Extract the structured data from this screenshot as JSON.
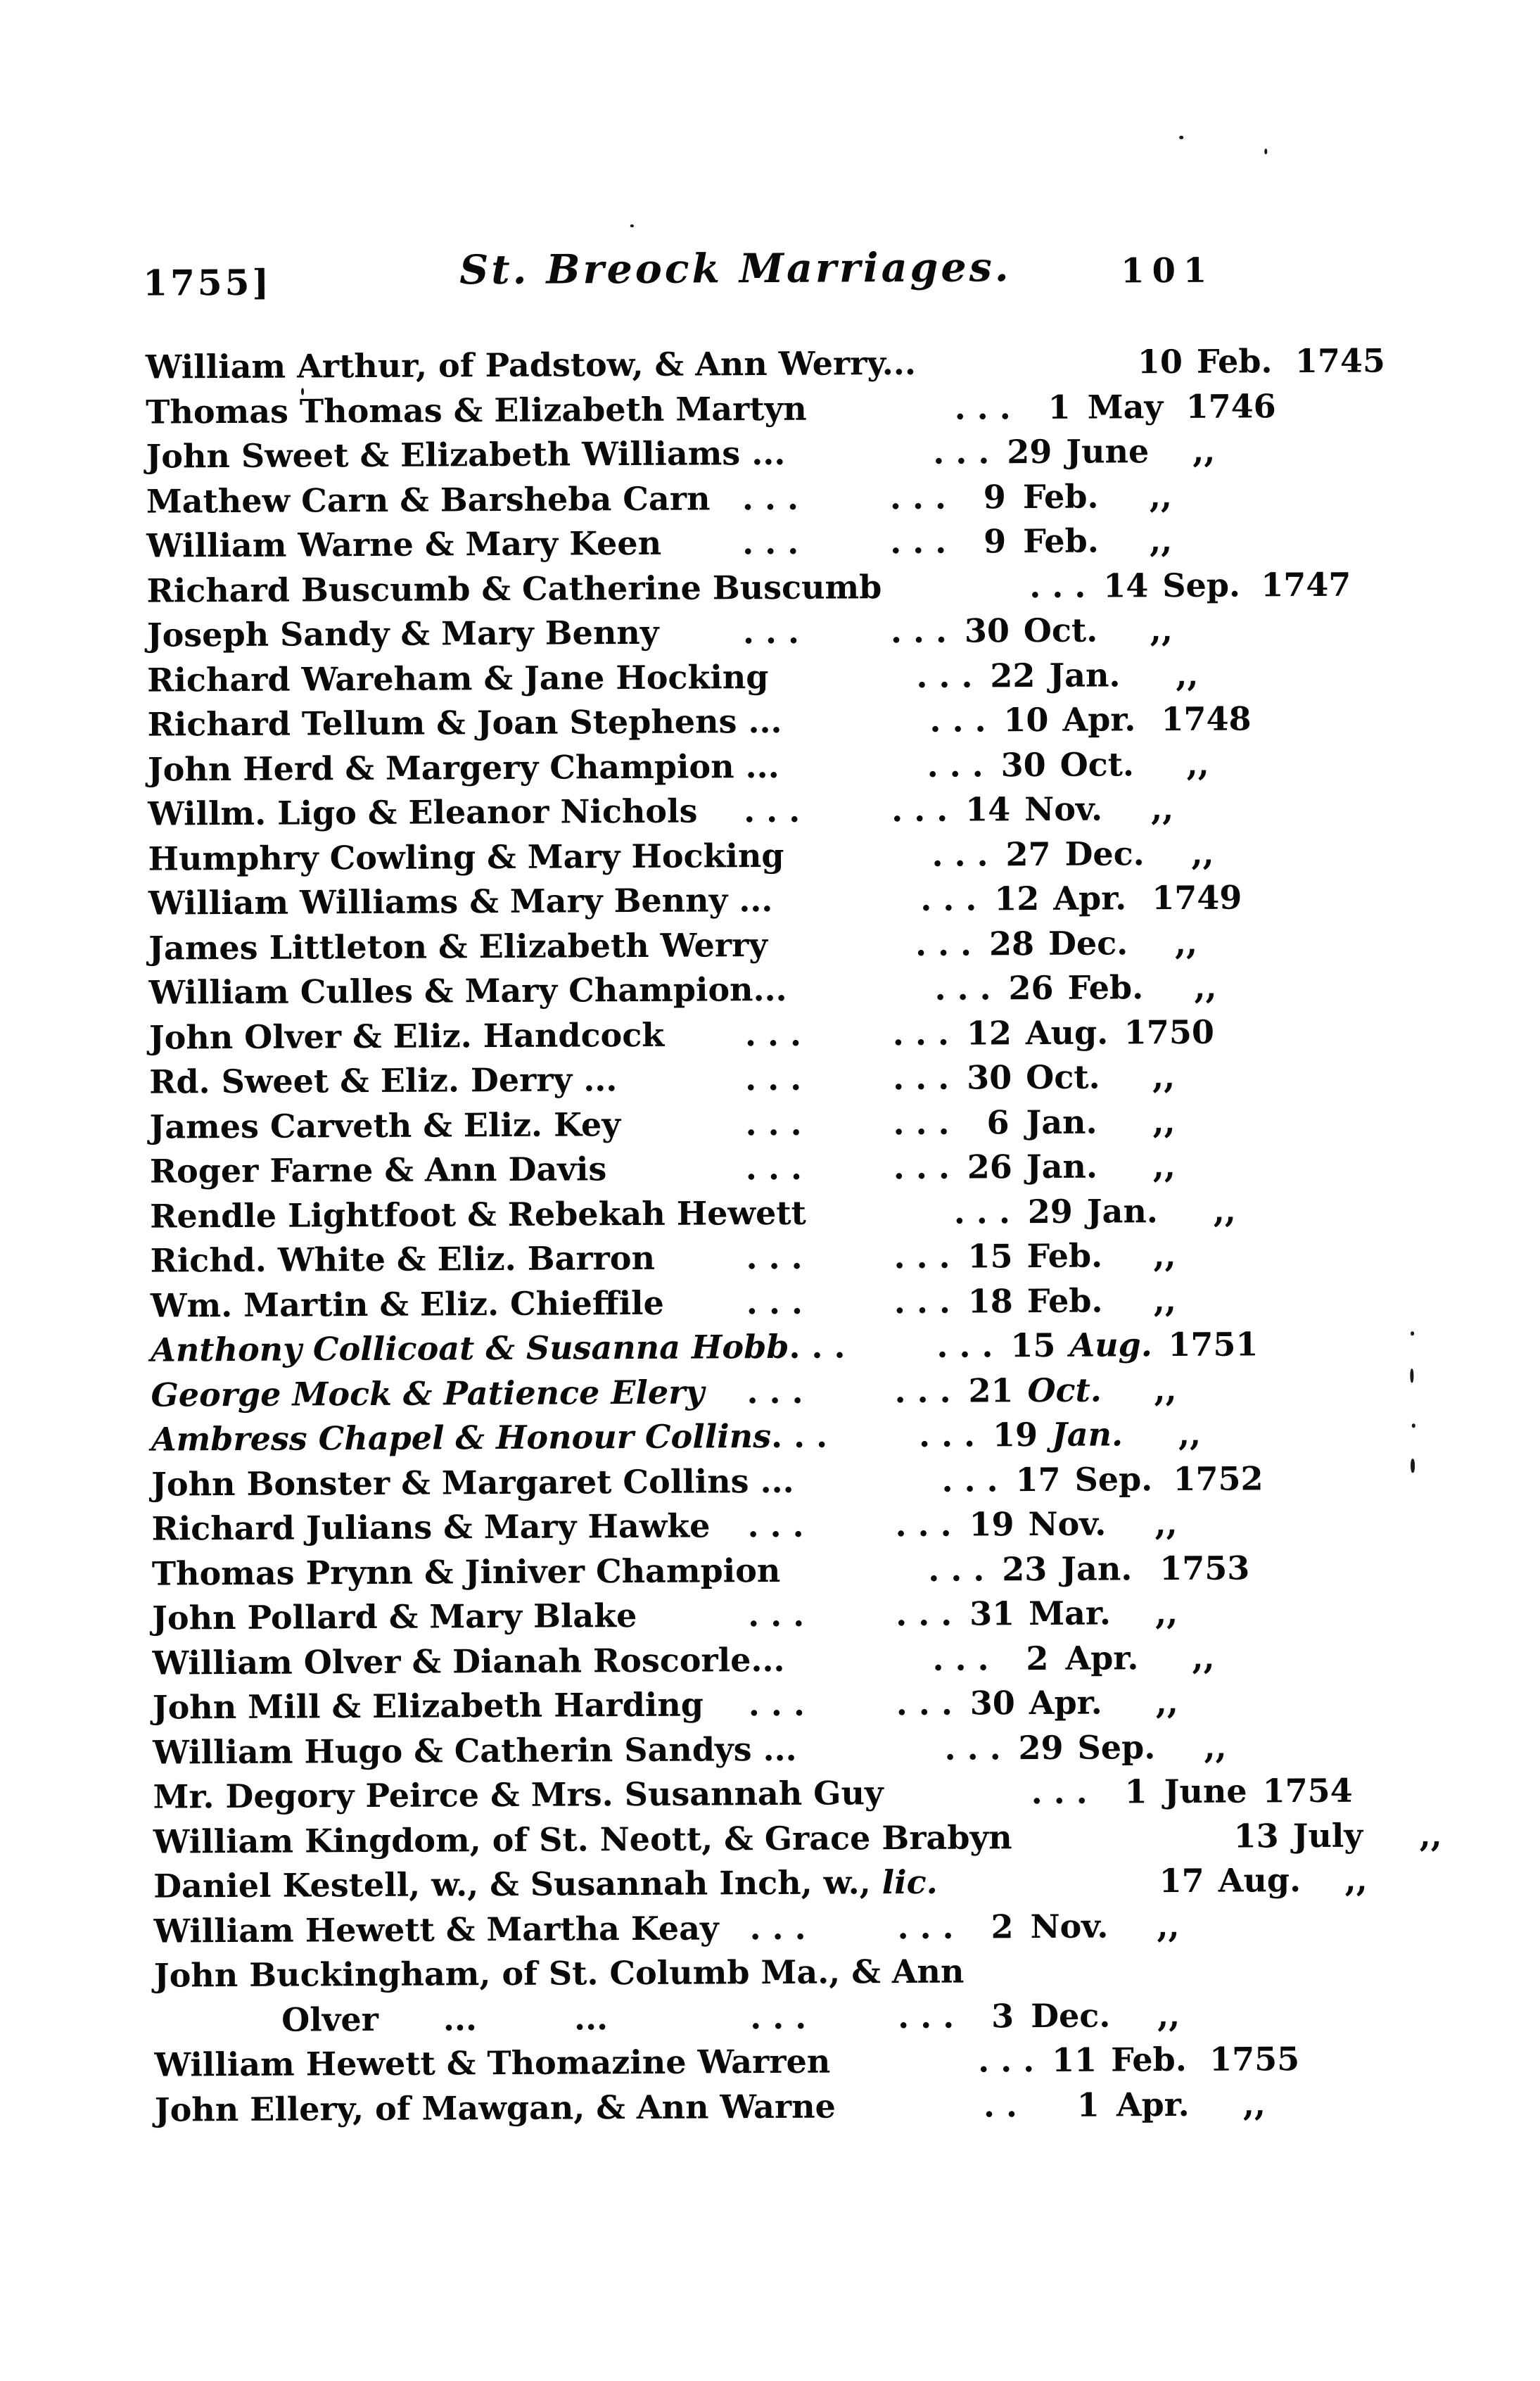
{
  "header": {
    "year_label": "1755]",
    "title": "St. Breock Marriages.",
    "page_number": "101"
  },
  "records": [
    {
      "name": "William Arthur, of Padstow, & Ann Werry...",
      "dots_a": "",
      "dots_b": "",
      "day": "10",
      "month": "Feb.",
      "year": "1745"
    },
    {
      "name": "Thomas Thomas & Elizabeth Martyn",
      "dots_a": "",
      "dots_b": "...",
      "day": "1",
      "month": "May",
      "year": "1746"
    },
    {
      "name": "John Sweet & Elizabeth Williams ...",
      "dots_a": "",
      "dots_b": "...",
      "day": "29",
      "month": "June",
      "year": ",,"
    },
    {
      "name": "Mathew Carn & Barsheba Carn",
      "dots_a": "...",
      "dots_b": "...",
      "day": "9",
      "month": "Feb.",
      "year": ",,"
    },
    {
      "name": "William Warne & Mary Keen",
      "dots_a": "...",
      "dots_b": "...",
      "day": "9",
      "month": "Feb.",
      "year": ",,"
    },
    {
      "name": "Richard Buscumb & Catherine Buscumb",
      "dots_a": "",
      "dots_b": "...",
      "day": "14",
      "month": "Sep.",
      "year": "1747"
    },
    {
      "name": "Joseph Sandy & Mary Benny",
      "dots_a": "...",
      "dots_b": "...",
      "day": "30",
      "month": "Oct.",
      "year": ",,"
    },
    {
      "name": "Richard Wareham & Jane Hocking",
      "dots_a": "",
      "dots_b": "...",
      "day": "22",
      "month": "Jan.",
      "year": ",,"
    },
    {
      "name": "Richard Tellum & Joan Stephens ...",
      "dots_a": "",
      "dots_b": "...",
      "day": "10",
      "month": "Apr.",
      "year": "1748"
    },
    {
      "name": "John Herd & Margery Champion ...",
      "dots_a": "",
      "dots_b": "...",
      "day": "30",
      "month": "Oct.",
      "year": ",,"
    },
    {
      "name": "Willm. Ligo & Eleanor Nichols",
      "dots_a": "...",
      "dots_b": "...",
      "day": "14",
      "month": "Nov.",
      "year": ",,"
    },
    {
      "name": "Humphry Cowling & Mary Hocking",
      "dots_a": "",
      "dots_b": "...",
      "day": "27",
      "month": "Dec.",
      "year": ",,"
    },
    {
      "name": "William Williams & Mary Benny ...",
      "dots_a": "",
      "dots_b": "...",
      "day": "12",
      "month": "Apr.",
      "year": "1749"
    },
    {
      "name": "James Littleton & Elizabeth Werry",
      "dots_a": "",
      "dots_b": "...",
      "day": "28",
      "month": "Dec.",
      "year": ",,"
    },
    {
      "name": "William Culles & Mary Champion...",
      "dots_a": "",
      "dots_b": "...",
      "day": "26",
      "month": "Feb.",
      "year": ",,"
    },
    {
      "name": "John Olver & Eliz. Handcock",
      "dots_a": "...",
      "dots_b": "...",
      "day": "12",
      "month": "Aug.",
      "year": "1750"
    },
    {
      "name": "Rd. Sweet & Eliz. Derry ...",
      "dots_a": "...",
      "dots_b": "...",
      "day": "30",
      "month": "Oct.",
      "year": ",,"
    },
    {
      "name": "James Carveth & Eliz. Key",
      "dots_a": "...",
      "dots_b": "...",
      "day": "6",
      "month": "Jan.",
      "year": ",,"
    },
    {
      "name": "Roger Farne & Ann Davis",
      "dots_a": "...",
      "dots_b": "...",
      "day": "26",
      "month": "Jan.",
      "year": ",,"
    },
    {
      "name": "Rendle Lightfoot & Rebekah Hewett",
      "dots_a": "",
      "dots_b": "...",
      "day": "29",
      "month": "Jan.",
      "year": ",,"
    },
    {
      "name": "Richd. White & Eliz. Barron",
      "dots_a": "...",
      "dots_b": "...",
      "day": "15",
      "month": "Feb.",
      "year": ",,"
    },
    {
      "name": "Wm. Martin & Eliz. Chieffile",
      "dots_a": "...",
      "dots_b": "...",
      "day": "18",
      "month": "Feb.",
      "year": ",,"
    },
    {
      "name": "Anthony Collicoat & Susanna Hobb",
      "italic": true,
      "dots_a": "...",
      "dots_b": "...",
      "day": "15",
      "month": "Aug.",
      "month_italic": true,
      "year": "1751"
    },
    {
      "name": "George Mock & Patience Elery",
      "italic": true,
      "dots_a": "...",
      "dots_b": "...",
      "day": "21",
      "month": "Oct.",
      "month_italic": true,
      "year": ",,"
    },
    {
      "name": "Ambress Chapel & Honour Collins",
      "italic": true,
      "dots_a": "...",
      "dots_b": "...",
      "day": "19",
      "month": "Jan.",
      "month_italic": true,
      "year": ",,"
    },
    {
      "name": "John Bonster & Margaret Collins ...",
      "dots_a": "",
      "dots_b": "...",
      "day": "17",
      "month": "Sep.",
      "year": "1752"
    },
    {
      "name": "Richard Julians & Mary Hawke",
      "dots_a": "...",
      "dots_b": "...",
      "day": "19",
      "month": "Nov.",
      "year": ",,"
    },
    {
      "name": "Thomas Prynn & Jiniver Champion",
      "dots_a": "",
      "dots_b": "...",
      "day": "23",
      "month": "Jan.",
      "year": "1753"
    },
    {
      "name": "John Pollard & Mary Blake",
      "dots_a": "...",
      "dots_b": "...",
      "day": "31",
      "month": "Mar.",
      "year": ",,"
    },
    {
      "name": "William Olver & Dianah Roscorle...",
      "dots_a": "",
      "dots_b": "...",
      "day": "2",
      "month": "Apr.",
      "year": ",,"
    },
    {
      "name": "John Mill & Elizabeth Harding",
      "dots_a": "...",
      "dots_b": "...",
      "day": "30",
      "month": "Apr.",
      "year": ",,"
    },
    {
      "name": "William Hugo & Catherin Sandys ...",
      "dots_a": "",
      "dots_b": "...",
      "day": "29",
      "month": "Sep.",
      "year": ",,"
    },
    {
      "name": "Mr. Degory Peirce & Mrs. Susannah Guy",
      "dots_a": "",
      "dots_b": "...",
      "day": "1",
      "month": "June",
      "year": "1754"
    },
    {
      "name": "William Kingdom, of St. Neott, & Grace Brabyn",
      "dots_a": "",
      "dots_b": "",
      "day": "13",
      "month": "July",
      "year": ",,"
    },
    {
      "name": "Daniel Kestell, w., & Susannah Inch, w., ",
      "suffix_italic": "lic.",
      "dots_a": "",
      "dots_b": "",
      "day": "17",
      "month": "Aug.",
      "year": ",,"
    },
    {
      "name": "William Hewett & Martha Keay",
      "dots_a": "...",
      "dots_b": "...",
      "day": "2",
      "month": "Nov.",
      "year": ",,"
    },
    {
      "name": "John Buckingham, of St. Columb Ma., & Ann",
      "dots_a": "",
      "dots_b": "",
      "day": "",
      "month": "",
      "year": ""
    },
    {
      "name": "Olver  ...   ...",
      "indent": true,
      "dots_a": "...",
      "dots_b": "...",
      "day": "3",
      "month": "Dec.",
      "year": ",,"
    },
    {
      "name": "William Hewett & Thomazine Warren",
      "dots_a": "",
      "dots_b": "...",
      "day": "11",
      "month": "Feb.",
      "year": "1755"
    },
    {
      "name": "John Ellery, of Mawgan, & Ann Warne",
      "dots_a": "",
      "dots_b": "..",
      "day": "1",
      "month": "Apr.",
      "year": ",,"
    }
  ]
}
